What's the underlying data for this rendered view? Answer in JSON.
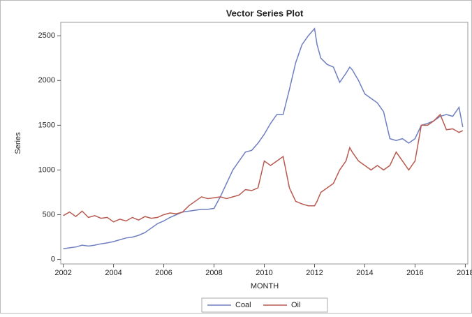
{
  "chart_data": {
    "type": "line",
    "title": "Vector Series Plot",
    "x_label": "MONTH",
    "y_label": "Series",
    "x": [
      2002,
      2002.25,
      2002.5,
      2002.75,
      2003,
      2003.25,
      2003.5,
      2003.75,
      2004,
      2004.25,
      2004.5,
      2004.75,
      2005,
      2005.25,
      2005.5,
      2005.75,
      2006,
      2006.25,
      2006.5,
      2006.75,
      2007,
      2007.25,
      2007.5,
      2007.75,
      2008,
      2008.25,
      2008.5,
      2008.75,
      2009,
      2009.25,
      2009.5,
      2009.75,
      2010,
      2010.25,
      2010.5,
      2010.75,
      2011,
      2011.25,
      2011.5,
      2011.75,
      2012,
      2012.1,
      2012.25,
      2012.5,
      2012.75,
      2013,
      2013.25,
      2013.4,
      2013.5,
      2013.75,
      2014,
      2014.25,
      2014.5,
      2014.75,
      2015,
      2015.25,
      2015.5,
      2015.75,
      2016,
      2016.25,
      2016.5,
      2016.75,
      2017,
      2017.25,
      2017.5,
      2017.75,
      2017.9
    ],
    "series": [
      {
        "name": "Coal",
        "color": "#6f7fc0",
        "values": [
          120,
          130,
          140,
          160,
          150,
          160,
          175,
          185,
          200,
          220,
          240,
          250,
          270,
          300,
          350,
          400,
          430,
          470,
          500,
          530,
          540,
          550,
          560,
          560,
          570,
          700,
          850,
          1000,
          1100,
          1200,
          1220,
          1300,
          1400,
          1520,
          1620,
          1620,
          1900,
          2200,
          2400,
          2500,
          2580,
          2400,
          2250,
          2180,
          2150,
          1980,
          2080,
          2150,
          2120,
          2000,
          1850,
          1800,
          1750,
          1650,
          1350,
          1330,
          1350,
          1300,
          1350,
          1500,
          1520,
          1550,
          1600,
          1620,
          1600,
          1700,
          1480
        ]
      },
      {
        "name": "Oil",
        "color": "#b85a50",
        "values": [
          490,
          530,
          480,
          540,
          470,
          490,
          460,
          470,
          420,
          450,
          430,
          470,
          440,
          480,
          460,
          470,
          500,
          520,
          510,
          530,
          600,
          650,
          700,
          680,
          690,
          700,
          680,
          700,
          720,
          780,
          770,
          800,
          1100,
          1050,
          1100,
          1150,
          800,
          650,
          620,
          600,
          600,
          650,
          750,
          800,
          850,
          1000,
          1100,
          1250,
          1200,
          1100,
          1050,
          1000,
          1050,
          1000,
          1050,
          1200,
          1100,
          1000,
          1100,
          1500,
          1500,
          1550,
          1620,
          1450,
          1460,
          1420,
          1440
        ]
      }
    ],
    "xlim": [
      2001.9,
      2018.1
    ],
    "xticks": [
      2002,
      2004,
      2006,
      2008,
      2010,
      2012,
      2014,
      2016,
      2018
    ],
    "ylim": [
      -50,
      2650
    ],
    "yticks": [
      0,
      500,
      1000,
      1500,
      2000,
      2500
    ],
    "legend": "bottom"
  }
}
